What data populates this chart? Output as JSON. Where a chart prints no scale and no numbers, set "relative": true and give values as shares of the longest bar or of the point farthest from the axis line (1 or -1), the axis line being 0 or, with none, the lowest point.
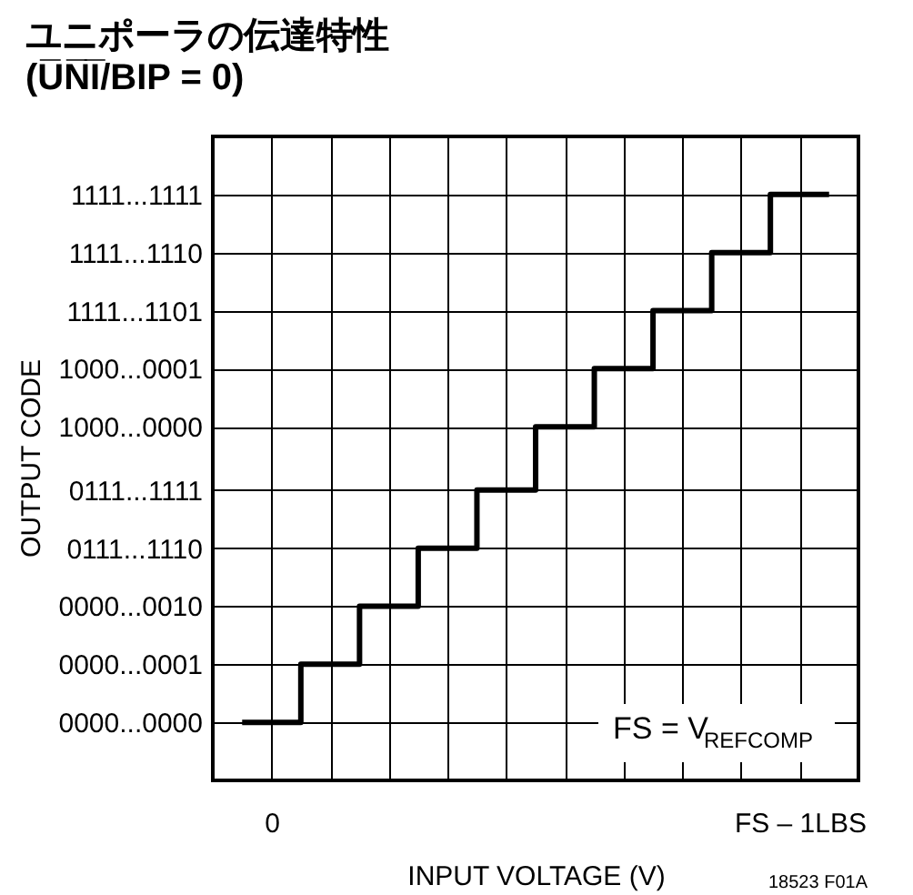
{
  "chart_data": {
    "type": "step",
    "title": "ユニポーラの伝達特性",
    "subtitle": "(U̅N̅I̅/BIP = 0)",
    "xlabel": "INPUT VOLTAGE (V)",
    "relative": true,
    "categories": [
      null,
      null,
      "0",
      null,
      null,
      null,
      null,
      null,
      null,
      null,
      null,
      null,
      null,
      null,
      null,
      null,
      null,
      null,
      null,
      null,
      "FS – 1LBS",
      null,
      null
    ],
    "y_categories": [
      "1111...1111",
      "1111...1110",
      "1111...1101",
      "1000...0001",
      "1000...0000",
      "0111...1111",
      "0111...1110",
      "0000...0010",
      "0000...0001",
      "0000...0000"
    ],
    "series": [
      {
        "color": "#000000",
        "values": [
          null,
          0,
          0,
          0.11,
          0.11,
          0.22,
          0.22,
          0.33,
          0.33,
          0.44,
          0.44,
          0.56,
          0.56,
          0.67,
          0.67,
          0.78,
          0.78,
          0.89,
          0.89,
          1,
          1,
          1,
          null
        ]
      }
    ],
    "grid": true,
    "line_style": "solid",
    "annotations": [
      "FS = V$_{REFCOMP}$",
      "18523 F01A",
      "OUTPUT CODE"
    ]
  }
}
